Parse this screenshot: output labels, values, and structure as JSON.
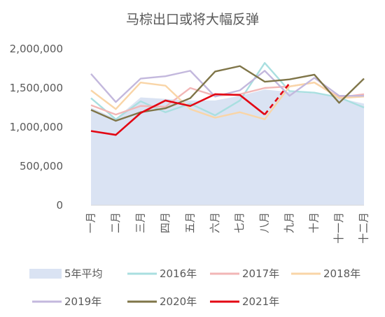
{
  "chart_data": {
    "type": "line",
    "title": "马棕出口或将大幅反弹",
    "categories": [
      "一月",
      "二月",
      "三月",
      "四月",
      "五月",
      "六月",
      "七月",
      "八月",
      "九月",
      "十月",
      "十一月",
      "十二月"
    ],
    "ylim": [
      0,
      2000000
    ],
    "yticks": [
      "0",
      "500,000",
      "1,000,000",
      "1,500,000",
      "2,000,000"
    ],
    "ytick_values": [
      0,
      500000,
      1000000,
      1500000,
      2000000
    ],
    "grid": false,
    "legend_position": "bottom",
    "area": {
      "name": "5年平均",
      "color": "#dae3f3",
      "values": [
        1250000,
        1110000,
        1380000,
        1360000,
        1340000,
        1340000,
        1400000,
        1480000,
        1450000,
        1430000,
        1370000,
        1300000
      ]
    },
    "series": [
      {
        "name": "2016年",
        "color": "#a9dfe0",
        "values": [
          1370000,
          1100000,
          1330000,
          1190000,
          1300000,
          1150000,
          1340000,
          1820000,
          1460000,
          1440000,
          1380000,
          1250000
        ]
      },
      {
        "name": "2017年",
        "color": "#f2b6b6",
        "values": [
          1280000,
          1160000,
          1270000,
          1260000,
          1500000,
          1400000,
          1420000,
          1500000,
          1520000,
          1570000,
          1380000,
          1420000
        ]
      },
      {
        "name": "2018年",
        "color": "#f9d5a7",
        "values": [
          1470000,
          1230000,
          1570000,
          1530000,
          1230000,
          1120000,
          1190000,
          1100000,
          1520000,
          1570000,
          1370000,
          1390000
        ]
      },
      {
        "name": "2019年",
        "color": "#c3b8dd",
        "values": [
          1680000,
          1320000,
          1620000,
          1650000,
          1720000,
          1390000,
          1470000,
          1720000,
          1400000,
          1630000,
          1400000,
          1400000
        ]
      },
      {
        "name": "2020年",
        "color": "#7f7548",
        "values": [
          1220000,
          1080000,
          1190000,
          1240000,
          1370000,
          1710000,
          1780000,
          1580000,
          1610000,
          1670000,
          1310000,
          1620000
        ]
      },
      {
        "name": "2021年",
        "color": "#e30613",
        "values": [
          950000,
          900000,
          1180000,
          1340000,
          1270000,
          1420000,
          1410000,
          1160000,
          1560000,
          null,
          null,
          null
        ],
        "dashed_from_index": 7
      }
    ]
  }
}
